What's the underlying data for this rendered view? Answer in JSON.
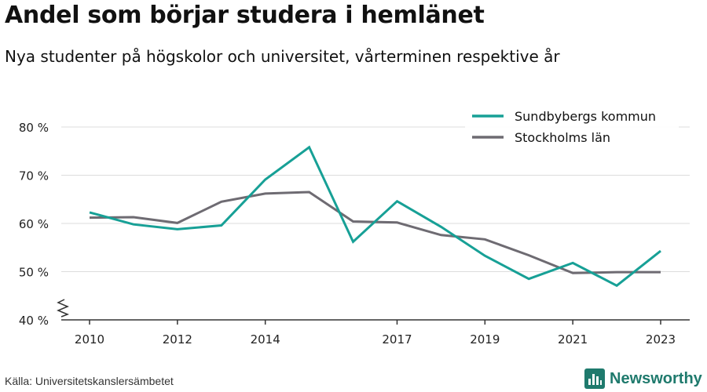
{
  "title": "Andel som börjar studera i hemlänet",
  "subtitle": "Nya studenter på högskolor och universitet, vårterminen respektive år",
  "source": "Källa: Universitetskanslersämbetet",
  "brand": "Newsworthy",
  "colors": {
    "sundbyberg": "#17a096",
    "stockholm": "#6e6b72",
    "grid": "#dcdcdc",
    "axis": "#333333",
    "brand": "#1f7a6d"
  },
  "chart_data": {
    "type": "line",
    "x": [
      2010,
      2011,
      2012,
      2013,
      2014,
      2015,
      2016,
      2017,
      2018,
      2019,
      2020,
      2021,
      2022,
      2023
    ],
    "series": [
      {
        "name": "Sundbybergs kommun",
        "color": "#17a096",
        "values": [
          62.3,
          59.8,
          58.8,
          59.6,
          69.1,
          75.8,
          56.2,
          64.6,
          59.3,
          53.3,
          48.5,
          51.8,
          47.1,
          54.3
        ]
      },
      {
        "name": "Stockholms län",
        "color": "#6e6b72",
        "values": [
          61.2,
          61.3,
          60.1,
          64.5,
          66.2,
          66.5,
          60.4,
          60.2,
          57.6,
          56.7,
          53.4,
          49.7,
          49.9,
          49.9
        ]
      }
    ],
    "xticks": [
      2010,
      2012,
      2014,
      2017,
      2019,
      2021,
      2023
    ],
    "xtick_labels": [
      "2010",
      "2012",
      "2014",
      "2017",
      "2019",
      "2021",
      "2023"
    ],
    "yticks": [
      40,
      50,
      60,
      70,
      80
    ],
    "ytick_labels": [
      "40 %",
      "50 %",
      "60 %",
      "70 %",
      "80 %"
    ],
    "ylim": [
      40,
      80
    ],
    "xlim": [
      2010,
      2023
    ],
    "axis_break": true,
    "grid": true,
    "legend_position": "top-right"
  }
}
